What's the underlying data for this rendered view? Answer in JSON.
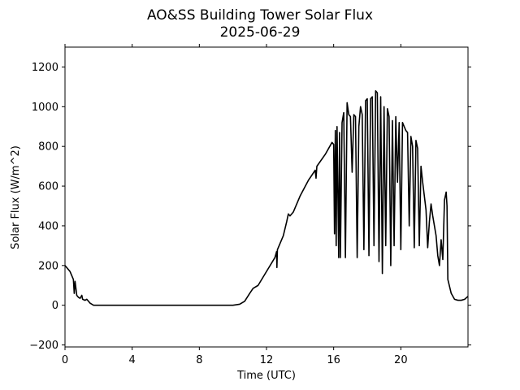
{
  "chart_data": {
    "type": "line",
    "title": "AO&SS Building Tower Solar Flux",
    "subtitle": "2025-06-29",
    "x_label": "Time (UTC)",
    "y_label": "Solar Flux (W/m^2)",
    "color": "#000000",
    "grid": false,
    "xlim": [
      0,
      24
    ],
    "xticks": [
      0,
      4,
      8,
      12,
      16,
      20
    ],
    "ylim": [
      -210,
      1300
    ],
    "yticks": [
      {
        "value": -200,
        "label": "−200"
      },
      0,
      200,
      400,
      600,
      800,
      1000,
      1200
    ],
    "x": [
      0,
      0.3,
      0.5,
      0.55,
      0.6,
      0.7,
      0.8,
      0.9,
      1.0,
      1.05,
      1.2,
      1.3,
      1.5,
      1.7,
      2,
      10,
      10.4,
      10.7,
      11,
      11.2,
      11.5,
      12,
      12.5,
      12.6,
      12.62,
      12.65,
      13,
      13.2,
      13.3,
      13.4,
      13.6,
      14,
      14.5,
      14.9,
      14.95,
      15,
      15.5,
      15.9,
      16,
      16.05,
      16.1,
      16.15,
      16.2,
      16.3,
      16.35,
      16.4,
      16.5,
      16.6,
      16.7,
      16.8,
      16.9,
      17,
      17.1,
      17.2,
      17.3,
      17.4,
      17.5,
      17.6,
      17.7,
      17.8,
      17.9,
      18,
      18.1,
      18.2,
      18.3,
      18.4,
      18.5,
      18.6,
      18.7,
      18.8,
      18.9,
      19,
      19.1,
      19.2,
      19.3,
      19.4,
      19.5,
      19.6,
      19.7,
      19.8,
      19.9,
      20,
      20.1,
      20.2,
      20.3,
      20.4,
      20.5,
      20.6,
      20.7,
      20.8,
      20.9,
      21,
      21.1,
      21.2,
      21.3,
      21.4,
      21.5,
      21.6,
      21.7,
      21.8,
      21.9,
      22,
      22.1,
      22.2,
      22.3,
      22.4,
      22.5,
      22.6,
      22.7,
      22.75,
      22.8,
      23,
      23.2,
      23.4,
      23.6,
      23.8,
      24
    ],
    "values": [
      200,
      170,
      130,
      60,
      120,
      50,
      40,
      35,
      50,
      30,
      25,
      30,
      10,
      0,
      0,
      0,
      5,
      20,
      60,
      85,
      100,
      170,
      240,
      270,
      190,
      280,
      350,
      420,
      460,
      450,
      470,
      550,
      630,
      680,
      640,
      700,
      760,
      820,
      810,
      360,
      880,
      300,
      900,
      240,
      870,
      240,
      920,
      970,
      240,
      1020,
      960,
      950,
      670,
      960,
      950,
      240,
      900,
      1000,
      960,
      280,
      1030,
      1040,
      250,
      1040,
      1050,
      300,
      1080,
      1070,
      220,
      1050,
      160,
      1000,
      300,
      990,
      950,
      200,
      930,
      300,
      950,
      620,
      920,
      280,
      920,
      900,
      880,
      870,
      400,
      850,
      800,
      290,
      830,
      790,
      300,
      700,
      620,
      550,
      480,
      290,
      420,
      510,
      450,
      400,
      350,
      250,
      200,
      330,
      230,
      530,
      570,
      500,
      130,
      60,
      30,
      25,
      25,
      30,
      45
    ]
  }
}
